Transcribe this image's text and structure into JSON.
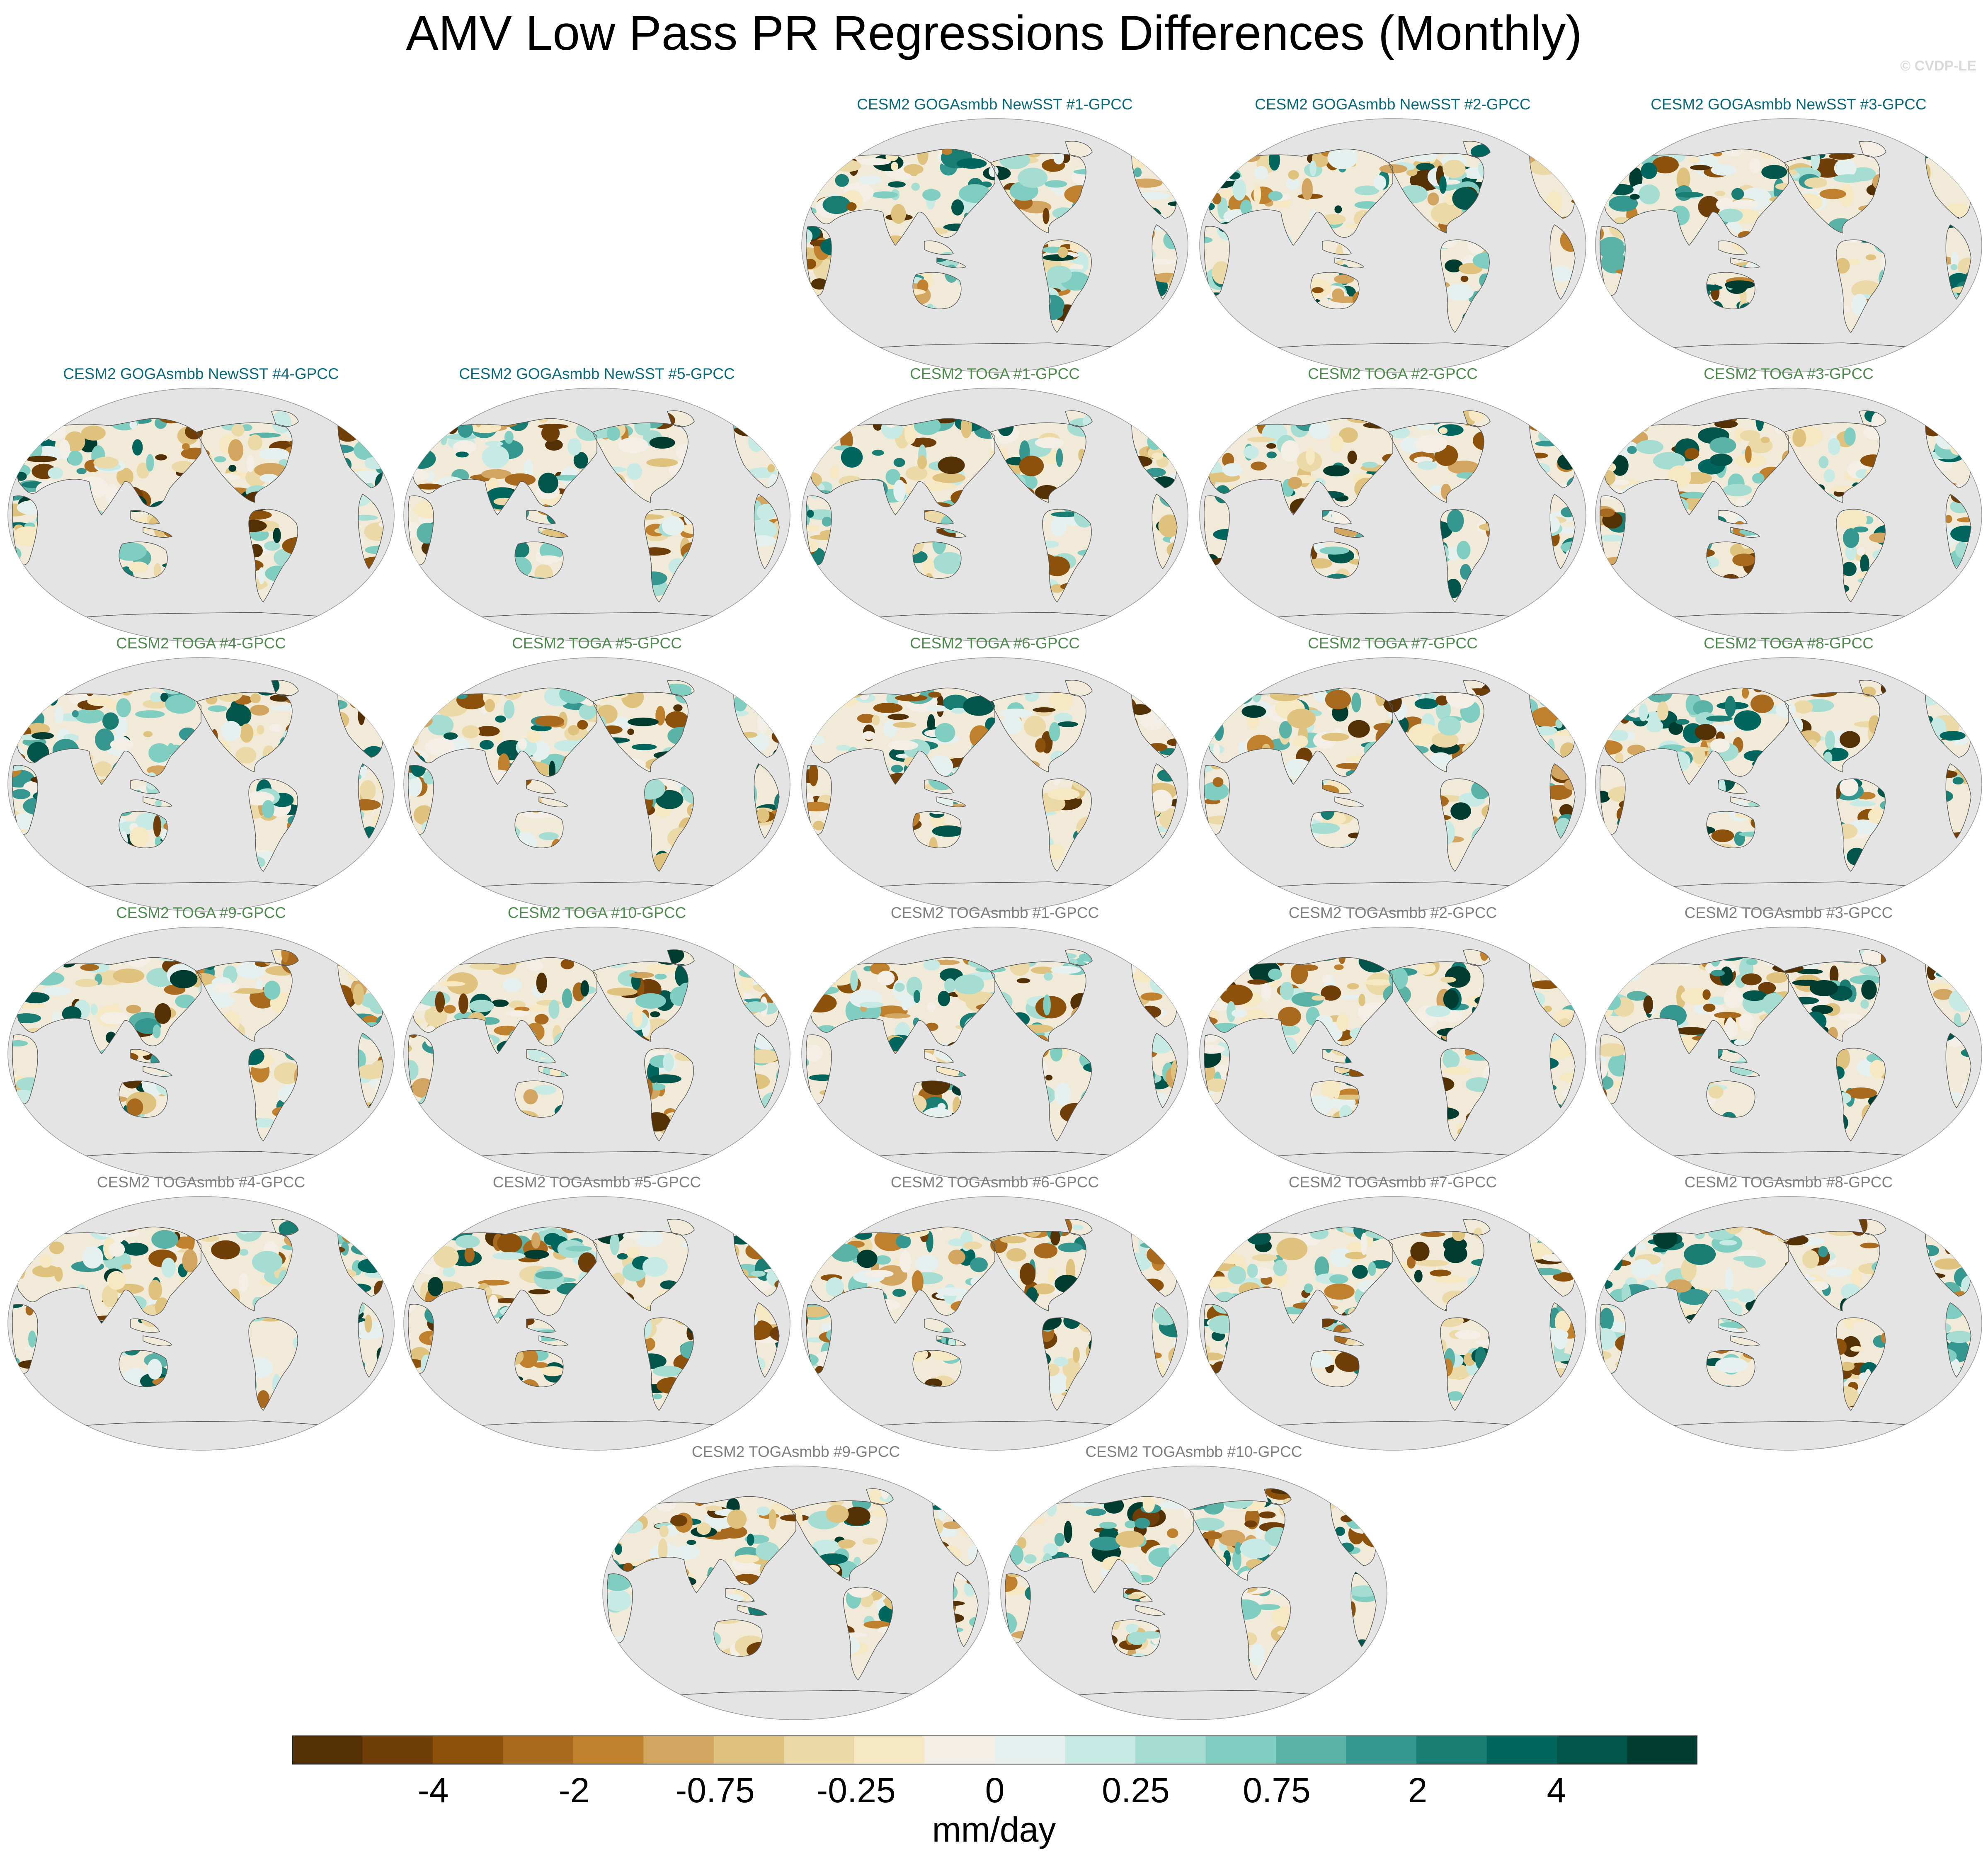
{
  "title": "AMV Low Pass PR Regressions Differences (Monthly)",
  "credit": "© CVDP-LE",
  "panels": [
    {
      "label": "CESM2 GOGAsmbb NewSST #1-GPCC",
      "group": "goga"
    },
    {
      "label": "CESM2 GOGAsmbb NewSST #2-GPCC",
      "group": "goga"
    },
    {
      "label": "CESM2 GOGAsmbb NewSST #3-GPCC",
      "group": "goga"
    },
    {
      "label": "CESM2 GOGAsmbb NewSST #4-GPCC",
      "group": "goga"
    },
    {
      "label": "CESM2 GOGAsmbb NewSST #5-GPCC",
      "group": "goga"
    },
    {
      "label": "CESM2 TOGA #1-GPCC",
      "group": "toga"
    },
    {
      "label": "CESM2 TOGA #2-GPCC",
      "group": "toga"
    },
    {
      "label": "CESM2 TOGA #3-GPCC",
      "group": "toga"
    },
    {
      "label": "CESM2 TOGA #4-GPCC",
      "group": "toga"
    },
    {
      "label": "CESM2 TOGA #5-GPCC",
      "group": "toga"
    },
    {
      "label": "CESM2 TOGA #6-GPCC",
      "group": "toga"
    },
    {
      "label": "CESM2 TOGA #7-GPCC",
      "group": "toga"
    },
    {
      "label": "CESM2 TOGA #8-GPCC",
      "group": "toga"
    },
    {
      "label": "CESM2 TOGA #9-GPCC",
      "group": "toga"
    },
    {
      "label": "CESM2 TOGA #10-GPCC",
      "group": "toga"
    },
    {
      "label": "CESM2 TOGAsmbb #1-GPCC",
      "group": "togasmbb"
    },
    {
      "label": "CESM2 TOGAsmbb #2-GPCC",
      "group": "togasmbb"
    },
    {
      "label": "CESM2 TOGAsmbb #3-GPCC",
      "group": "togasmbb"
    },
    {
      "label": "CESM2 TOGAsmbb #4-GPCC",
      "group": "togasmbb"
    },
    {
      "label": "CESM2 TOGAsmbb #5-GPCC",
      "group": "togasmbb"
    },
    {
      "label": "CESM2 TOGAsmbb #6-GPCC",
      "group": "togasmbb"
    },
    {
      "label": "CESM2 TOGAsmbb #7-GPCC",
      "group": "togasmbb"
    },
    {
      "label": "CESM2 TOGAsmbb #8-GPCC",
      "group": "togasmbb"
    },
    {
      "label": "CESM2 TOGAsmbb #9-GPCC",
      "group": "togasmbb"
    },
    {
      "label": "CESM2 TOGAsmbb #10-GPCC",
      "group": "togasmbb"
    }
  ],
  "group_colors": {
    "goga": "#0a6a7a",
    "toga": "#4f8a4f",
    "togasmbb": "#7f7f7f"
  },
  "colorbar": {
    "units": "mm/day",
    "tick_labels": [
      "-4",
      "-2",
      "-0.75",
      "-0.25",
      "0",
      "0.25",
      "0.75",
      "2",
      "4"
    ],
    "colors": [
      "#543005",
      "#6f3e09",
      "#8c510a",
      "#a86a1e",
      "#bf812d",
      "#d2a660",
      "#dfc27d",
      "#ecd9a8",
      "#f6e8c3",
      "#f3efe6",
      "#e6f1ef",
      "#c7eae5",
      "#a6ddd3",
      "#80cdc1",
      "#5ab3a6",
      "#35978f",
      "#1a7d73",
      "#01665e",
      "#02554a",
      "#003c30"
    ]
  },
  "map_style": {
    "ocean": "#e4e4e4",
    "land_fallback": "#f1ead8",
    "coast": "#555555"
  }
}
